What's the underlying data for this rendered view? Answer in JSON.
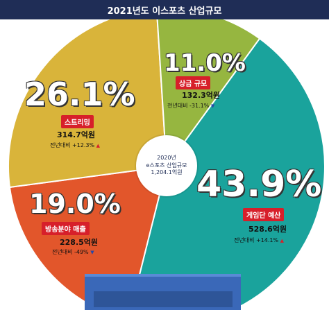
{
  "title": "2021년도 이스포츠 산업규모",
  "center": {
    "line1": "2020년",
    "line2": "e스포츠 산업규모",
    "line3": "1,204.1억원"
  },
  "segments": [
    {
      "pct": "43.9%",
      "tag": "게임단 예산",
      "amount": "528.6억원",
      "change": "전년대비 +14.1%",
      "arrow": "▲",
      "color": "#1aa39c"
    },
    {
      "pct": "19.0%",
      "tag": "방송분야 매출",
      "amount": "228.5억원",
      "change": "전년대비 -49%",
      "arrow": "▼",
      "color": "#e2562b"
    },
    {
      "pct": "26.1%",
      "tag": "스트리밍",
      "amount": "314.7억원",
      "change": "전년대비 +12.3%",
      "arrow": "▲",
      "color": "#d9b43a"
    },
    {
      "pct": "11.0%",
      "tag": "상금 규모",
      "amount": "132.3억원",
      "change": "전년대비 -31.1%",
      "arrow": "▼",
      "color": "#96b640"
    }
  ],
  "chart_data": {
    "type": "pie",
    "title": "2021년도 이스포츠 산업규모",
    "categories": [
      "게임단 예산",
      "방송분야 매출",
      "스트리밍",
      "상금 규모"
    ],
    "values": [
      43.9,
      19.0,
      26.1,
      11.0
    ],
    "amounts_억원": [
      528.6,
      228.5,
      314.7,
      132.3
    ],
    "yoy_change_pct": [
      14.1,
      -49,
      12.3,
      -31.1
    ],
    "colors": [
      "#1aa39c",
      "#e2562b",
      "#d9b43a",
      "#96b640"
    ],
    "total_label": "1,204.1억원"
  }
}
